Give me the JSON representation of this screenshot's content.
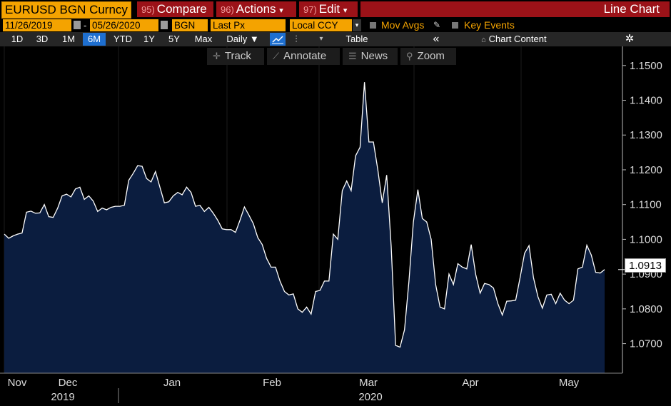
{
  "header": {
    "ticker": "EURUSD BGN Curncy",
    "compare": {
      "num": "95)",
      "label": "Compare"
    },
    "actions": {
      "num": "96)",
      "label": "Actions",
      "arrow": "▾"
    },
    "edit": {
      "num": "97)",
      "label": "Edit",
      "arrow": "▾"
    },
    "title": "Line Chart"
  },
  "settings": {
    "start_date": "11/26/2019",
    "dash": "-",
    "end_date": "05/26/2020",
    "source": "BGN",
    "field": "Last Px",
    "currency": "Local CCY",
    "mov_avgs": "Mov Avgs",
    "key_events": "Key Events"
  },
  "ranges": {
    "items": [
      "1D",
      "3D",
      "1M",
      "6M",
      "YTD",
      "1Y",
      "5Y",
      "Max"
    ],
    "active": "6M",
    "frequency": "Daily ▼",
    "table": "Table",
    "collapse": "«",
    "chart_content": "Chart Content",
    "gear": "✲"
  },
  "tools": {
    "track": "Track",
    "annotate": "Annotate",
    "news": "News",
    "zoom": "Zoom"
  },
  "colors": {
    "accent": "#f4a300",
    "red": "#9b1218",
    "fill": "#0b1d3f",
    "line": "#ffffff"
  },
  "chart_data": {
    "type": "area",
    "y_axis_side": "right",
    "ylim": [
      1.0615,
      1.1555
    ],
    "yticks": [
      "1.1500",
      "1.1400",
      "1.1300",
      "1.1200",
      "1.1100",
      "1.1000",
      "1.0900",
      "1.0800",
      "1.0700"
    ],
    "xlabels": [
      "Nov",
      "Dec",
      "Jan",
      "Feb",
      "Mar",
      "Apr",
      "May"
    ],
    "year_labels": [
      "2019",
      "2020"
    ],
    "last_value": "1.0913",
    "series": [
      {
        "values": [
          1.1015,
          1.1003,
          1.101,
          1.1015,
          1.1018,
          1.1078,
          1.1081,
          1.1075,
          1.1076,
          1.11,
          1.1065,
          1.1063,
          1.109,
          1.1125,
          1.113,
          1.1122,
          1.1145,
          1.115,
          1.1115,
          1.1125,
          1.111,
          1.108,
          1.109,
          1.1085,
          1.1092,
          1.1095,
          1.1095,
          1.1098,
          1.117,
          1.119,
          1.1212,
          1.121,
          1.1175,
          1.1165,
          1.1195,
          1.115,
          1.1105,
          1.1108,
          1.1125,
          1.1135,
          1.1128,
          1.115,
          1.1135,
          1.1095,
          1.1098,
          1.108,
          1.1092,
          1.1075,
          1.1055,
          1.103,
          1.1028,
          1.1028,
          1.102,
          1.1055,
          1.1093,
          1.107,
          1.1045,
          1.1005,
          1.0985,
          1.0945,
          1.092,
          1.092,
          1.088,
          1.085,
          1.084,
          1.0843,
          1.08,
          1.079,
          1.0805,
          1.0785,
          1.085,
          1.0853,
          1.088,
          1.088,
          1.1015,
          1.1,
          1.114,
          1.1168,
          1.114,
          1.124,
          1.1265,
          1.1452,
          1.128,
          1.128,
          1.12,
          1.1105,
          1.1185,
          1.098,
          1.0695,
          1.069,
          1.074,
          1.088,
          1.105,
          1.1143,
          1.106,
          1.105,
          1.1,
          1.087,
          1.0805,
          1.08,
          1.09,
          1.087,
          1.093,
          1.092,
          1.0915,
          1.0985,
          1.09,
          1.0845,
          1.0873,
          1.087,
          1.086,
          1.0815,
          1.0782,
          1.0822,
          1.0823,
          1.0825,
          1.089,
          1.096,
          1.0982,
          1.089,
          1.0835,
          1.0802,
          1.084,
          1.0842,
          1.0815,
          1.0845,
          1.0825,
          1.0815,
          1.0825,
          1.0915,
          1.092,
          1.0983,
          1.0955,
          1.0905,
          1.0903,
          1.0913
        ]
      }
    ]
  }
}
